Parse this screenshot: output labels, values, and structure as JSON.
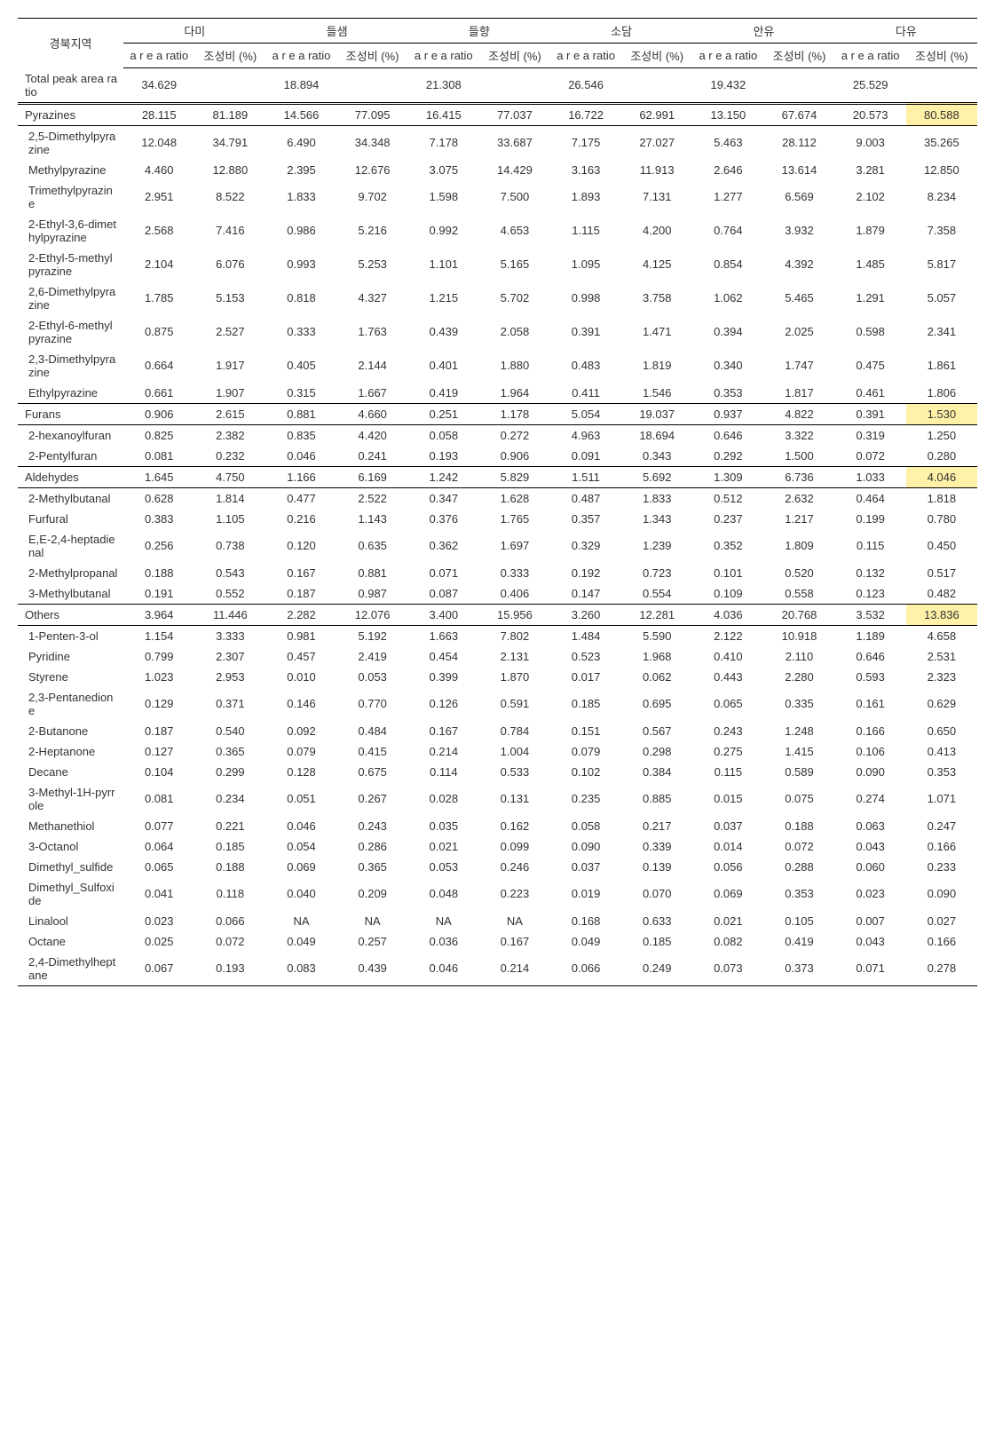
{
  "headers": {
    "region": "경북지역",
    "groups": [
      "다미",
      "들샘",
      "들향",
      "소담",
      "안유",
      "다유"
    ],
    "sub1": "a r e a ratio",
    "sub2": "조성비 (%)"
  },
  "rows": [
    {
      "label": "Total peak area ratio",
      "type": "dbl",
      "v": [
        "34.629",
        "",
        "18.894",
        "",
        "21.308",
        "",
        "26.546",
        "",
        "19.432",
        "",
        "25.529",
        ""
      ]
    },
    {
      "label": "Pyrazines",
      "type": "sect",
      "hl": [
        11
      ],
      "v": [
        "28.115",
        "81.189",
        "14.566",
        "77.095",
        "16.415",
        "77.037",
        "16.722",
        "62.991",
        "13.150",
        "67.674",
        "20.573",
        "80.588"
      ]
    },
    {
      "label": "2,5-Dimethylpyrazine",
      "type": "sub",
      "v": [
        "12.048",
        "34.791",
        "6.490",
        "34.348",
        "7.178",
        "33.687",
        "7.175",
        "27.027",
        "5.463",
        "28.112",
        "9.003",
        "35.265"
      ]
    },
    {
      "label": "Methylpyrazine",
      "type": "sub",
      "v": [
        "4.460",
        "12.880",
        "2.395",
        "12.676",
        "3.075",
        "14.429",
        "3.163",
        "11.913",
        "2.646",
        "13.614",
        "3.281",
        "12.850"
      ]
    },
    {
      "label": "Trimethylpyrazine",
      "type": "sub",
      "v": [
        "2.951",
        "8.522",
        "1.833",
        "9.702",
        "1.598",
        "7.500",
        "1.893",
        "7.131",
        "1.277",
        "6.569",
        "2.102",
        "8.234"
      ]
    },
    {
      "label": "2-Ethyl-3,6-dimethylpyrazine",
      "type": "sub",
      "v": [
        "2.568",
        "7.416",
        "0.986",
        "5.216",
        "0.992",
        "4.653",
        "1.115",
        "4.200",
        "0.764",
        "3.932",
        "1.879",
        "7.358"
      ]
    },
    {
      "label": "2-Ethyl-5-methylpyrazine",
      "type": "sub",
      "v": [
        "2.104",
        "6.076",
        "0.993",
        "5.253",
        "1.101",
        "5.165",
        "1.095",
        "4.125",
        "0.854",
        "4.392",
        "1.485",
        "5.817"
      ]
    },
    {
      "label": "2,6-Dimethylpyrazine",
      "type": "sub",
      "v": [
        "1.785",
        "5.153",
        "0.818",
        "4.327",
        "1.215",
        "5.702",
        "0.998",
        "3.758",
        "1.062",
        "5.465",
        "1.291",
        "5.057"
      ]
    },
    {
      "label": "2-Ethyl-6-methylpyrazine",
      "type": "sub",
      "v": [
        "0.875",
        "2.527",
        "0.333",
        "1.763",
        "0.439",
        "2.058",
        "0.391",
        "1.471",
        "0.394",
        "2.025",
        "0.598",
        "2.341"
      ]
    },
    {
      "label": "2,3-Dimethylpyrazine",
      "type": "sub",
      "v": [
        "0.664",
        "1.917",
        "0.405",
        "2.144",
        "0.401",
        "1.880",
        "0.483",
        "1.819",
        "0.340",
        "1.747",
        "0.475",
        "1.861"
      ]
    },
    {
      "label": "Ethylpyrazine",
      "type": "sub sect",
      "v": [
        "0.661",
        "1.907",
        "0.315",
        "1.667",
        "0.419",
        "1.964",
        "0.411",
        "1.546",
        "0.353",
        "1.817",
        "0.461",
        "1.806"
      ]
    },
    {
      "label": "Furans",
      "type": "sect",
      "hl": [
        11
      ],
      "v": [
        "0.906",
        "2.615",
        "0.881",
        "4.660",
        "0.251",
        "1.178",
        "5.054",
        "19.037",
        "0.937",
        "4.822",
        "0.391",
        "1.530"
      ]
    },
    {
      "label": "2-hexanoylfuran",
      "type": "sub",
      "v": [
        "0.825",
        "2.382",
        "0.835",
        "4.420",
        "0.058",
        "0.272",
        "4.963",
        "18.694",
        "0.646",
        "3.322",
        "0.319",
        "1.250"
      ]
    },
    {
      "label": "2-Pentylfuran",
      "type": "sub sect",
      "v": [
        "0.081",
        "0.232",
        "0.046",
        "0.241",
        "0.193",
        "0.906",
        "0.091",
        "0.343",
        "0.292",
        "1.500",
        "0.072",
        "0.280"
      ]
    },
    {
      "label": "Aldehydes",
      "type": "sect",
      "hl": [
        11
      ],
      "v": [
        "1.645",
        "4.750",
        "1.166",
        "6.169",
        "1.242",
        "5.829",
        "1.511",
        "5.692",
        "1.309",
        "6.736",
        "1.033",
        "4.046"
      ]
    },
    {
      "label": "2-Methylbutanal",
      "type": "sub",
      "v": [
        "0.628",
        "1.814",
        "0.477",
        "2.522",
        "0.347",
        "1.628",
        "0.487",
        "1.833",
        "0.512",
        "2.632",
        "0.464",
        "1.818"
      ]
    },
    {
      "label": "Furfural",
      "type": "sub",
      "v": [
        "0.383",
        "1.105",
        "0.216",
        "1.143",
        "0.376",
        "1.765",
        "0.357",
        "1.343",
        "0.237",
        "1.217",
        "0.199",
        "0.780"
      ]
    },
    {
      "label": "E,E-2,4-heptadienal",
      "type": "sub",
      "v": [
        "0.256",
        "0.738",
        "0.120",
        "0.635",
        "0.362",
        "1.697",
        "0.329",
        "1.239",
        "0.352",
        "1.809",
        "0.115",
        "0.450"
      ]
    },
    {
      "label": "2-Methylpropanal",
      "type": "sub",
      "v": [
        "0.188",
        "0.543",
        "0.167",
        "0.881",
        "0.071",
        "0.333",
        "0.192",
        "0.723",
        "0.101",
        "0.520",
        "0.132",
        "0.517"
      ]
    },
    {
      "label": "3-Methylbutanal",
      "type": "sub sect",
      "v": [
        "0.191",
        "0.552",
        "0.187",
        "0.987",
        "0.087",
        "0.406",
        "0.147",
        "0.554",
        "0.109",
        "0.558",
        "0.123",
        "0.482"
      ]
    },
    {
      "label": "Others",
      "type": "sect",
      "hl": [
        11
      ],
      "v": [
        "3.964",
        "11.446",
        "2.282",
        "12.076",
        "3.400",
        "15.956",
        "3.260",
        "12.281",
        "4.036",
        "20.768",
        "3.532",
        "13.836"
      ]
    },
    {
      "label": "1-Penten-3-ol",
      "type": "sub",
      "v": [
        "1.154",
        "3.333",
        "0.981",
        "5.192",
        "1.663",
        "7.802",
        "1.484",
        "5.590",
        "2.122",
        "10.918",
        "1.189",
        "4.658"
      ]
    },
    {
      "label": "Pyridine",
      "type": "sub",
      "v": [
        "0.799",
        "2.307",
        "0.457",
        "2.419",
        "0.454",
        "2.131",
        "0.523",
        "1.968",
        "0.410",
        "2.110",
        "0.646",
        "2.531"
      ]
    },
    {
      "label": "Styrene",
      "type": "sub",
      "v": [
        "1.023",
        "2.953",
        "0.010",
        "0.053",
        "0.399",
        "1.870",
        "0.017",
        "0.062",
        "0.443",
        "2.280",
        "0.593",
        "2.323"
      ]
    },
    {
      "label": "2,3-Pentanedione",
      "type": "sub",
      "v": [
        "0.129",
        "0.371",
        "0.146",
        "0.770",
        "0.126",
        "0.591",
        "0.185",
        "0.695",
        "0.065",
        "0.335",
        "0.161",
        "0.629"
      ]
    },
    {
      "label": "2-Butanone",
      "type": "sub",
      "v": [
        "0.187",
        "0.540",
        "0.092",
        "0.484",
        "0.167",
        "0.784",
        "0.151",
        "0.567",
        "0.243",
        "1.248",
        "0.166",
        "0.650"
      ]
    },
    {
      "label": "2-Heptanone",
      "type": "sub",
      "v": [
        "0.127",
        "0.365",
        "0.079",
        "0.415",
        "0.214",
        "1.004",
        "0.079",
        "0.298",
        "0.275",
        "1.415",
        "0.106",
        "0.413"
      ]
    },
    {
      "label": "Decane",
      "type": "sub",
      "v": [
        "0.104",
        "0.299",
        "0.128",
        "0.675",
        "0.114",
        "0.533",
        "0.102",
        "0.384",
        "0.115",
        "0.589",
        "0.090",
        "0.353"
      ]
    },
    {
      "label": "3-Methyl-1H-pyrrole",
      "type": "sub",
      "v": [
        "0.081",
        "0.234",
        "0.051",
        "0.267",
        "0.028",
        "0.131",
        "0.235",
        "0.885",
        "0.015",
        "0.075",
        "0.274",
        "1.071"
      ]
    },
    {
      "label": "Methanethiol",
      "type": "sub",
      "v": [
        "0.077",
        "0.221",
        "0.046",
        "0.243",
        "0.035",
        "0.162",
        "0.058",
        "0.217",
        "0.037",
        "0.188",
        "0.063",
        "0.247"
      ]
    },
    {
      "label": "3-Octanol",
      "type": "sub",
      "v": [
        "0.064",
        "0.185",
        "0.054",
        "0.286",
        "0.021",
        "0.099",
        "0.090",
        "0.339",
        "0.014",
        "0.072",
        "0.043",
        "0.166"
      ]
    },
    {
      "label": "Dimethyl_sulfide",
      "type": "sub",
      "v": [
        "0.065",
        "0.188",
        "0.069",
        "0.365",
        "0.053",
        "0.246",
        "0.037",
        "0.139",
        "0.056",
        "0.288",
        "0.060",
        "0.233"
      ]
    },
    {
      "label": "Dimethyl_Sulfoxide",
      "type": "sub",
      "v": [
        "0.041",
        "0.118",
        "0.040",
        "0.209",
        "0.048",
        "0.223",
        "0.019",
        "0.070",
        "0.069",
        "0.353",
        "0.023",
        "0.090"
      ]
    },
    {
      "label": "Linalool",
      "type": "sub",
      "v": [
        "0.023",
        "0.066",
        "NA",
        "NA",
        "NA",
        "NA",
        "0.168",
        "0.633",
        "0.021",
        "0.105",
        "0.007",
        "0.027"
      ]
    },
    {
      "label": "Octane",
      "type": "sub",
      "v": [
        "0.025",
        "0.072",
        "0.049",
        "0.257",
        "0.036",
        "0.167",
        "0.049",
        "0.185",
        "0.082",
        "0.419",
        "0.043",
        "0.166"
      ]
    },
    {
      "label": "2,4-Dimethylheptane",
      "type": "sub last",
      "v": [
        "0.067",
        "0.193",
        "0.083",
        "0.439",
        "0.046",
        "0.214",
        "0.066",
        "0.249",
        "0.073",
        "0.373",
        "0.071",
        "0.278"
      ]
    }
  ]
}
